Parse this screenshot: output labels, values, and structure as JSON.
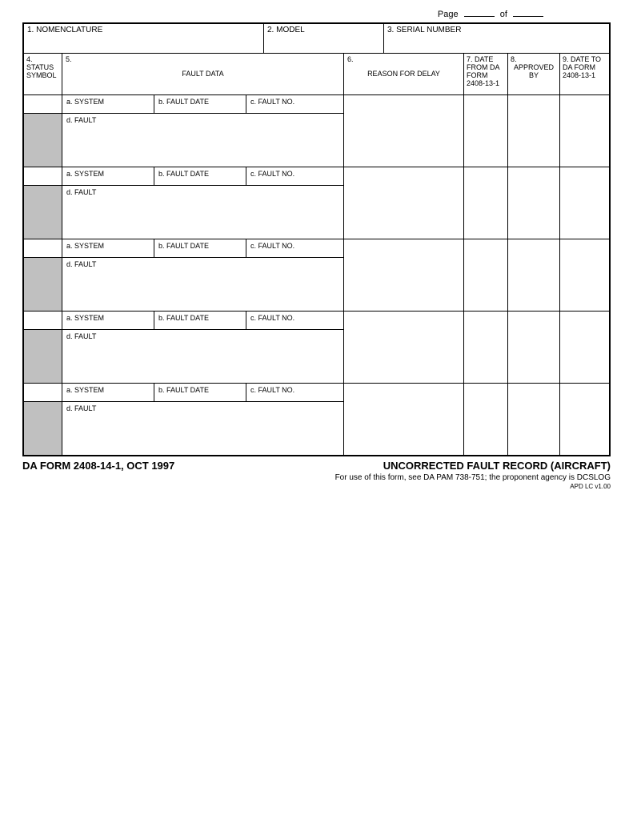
{
  "page_header": {
    "page_label": "Page",
    "of_label": "of"
  },
  "row1": {
    "nomenclature": "1. NOMENCLATURE",
    "model": "2. MODEL",
    "serial": "3. SERIAL NUMBER"
  },
  "row2": {
    "status_num": "4.",
    "status_label": "STATUS SYMBOL",
    "fault_num": "5.",
    "fault_label": "FAULT DATA",
    "reason_num": "6.",
    "reason_label": "REASON FOR DELAY",
    "date_from_num": "7.",
    "date_from_label": "DATE FROM DA FORM 2408-13-1",
    "approved_num": "8.",
    "approved_label": "APPROVED BY",
    "date_to_num": "9.",
    "date_to_label": "DATE TO DA FORM 2408-13-1"
  },
  "sub_labels": {
    "system": "a.  SYSTEM",
    "fault_date": "b.  FAULT DATE",
    "fault_no": "c.  FAULT NO.",
    "fault": "d.  FAULT"
  },
  "footer": {
    "form_id": "DA FORM 2408-14-1, OCT 1997",
    "title": "UNCORRECTED FAULT RECORD (AIRCRAFT)",
    "usage": "For use of this form, see DA PAM 738-751; the proponent agency is DCSLOG",
    "version": "APD LC v1.00"
  },
  "style": {
    "shade_color": "#c0c0c0",
    "border_color": "#000000",
    "entry_count": 5
  }
}
